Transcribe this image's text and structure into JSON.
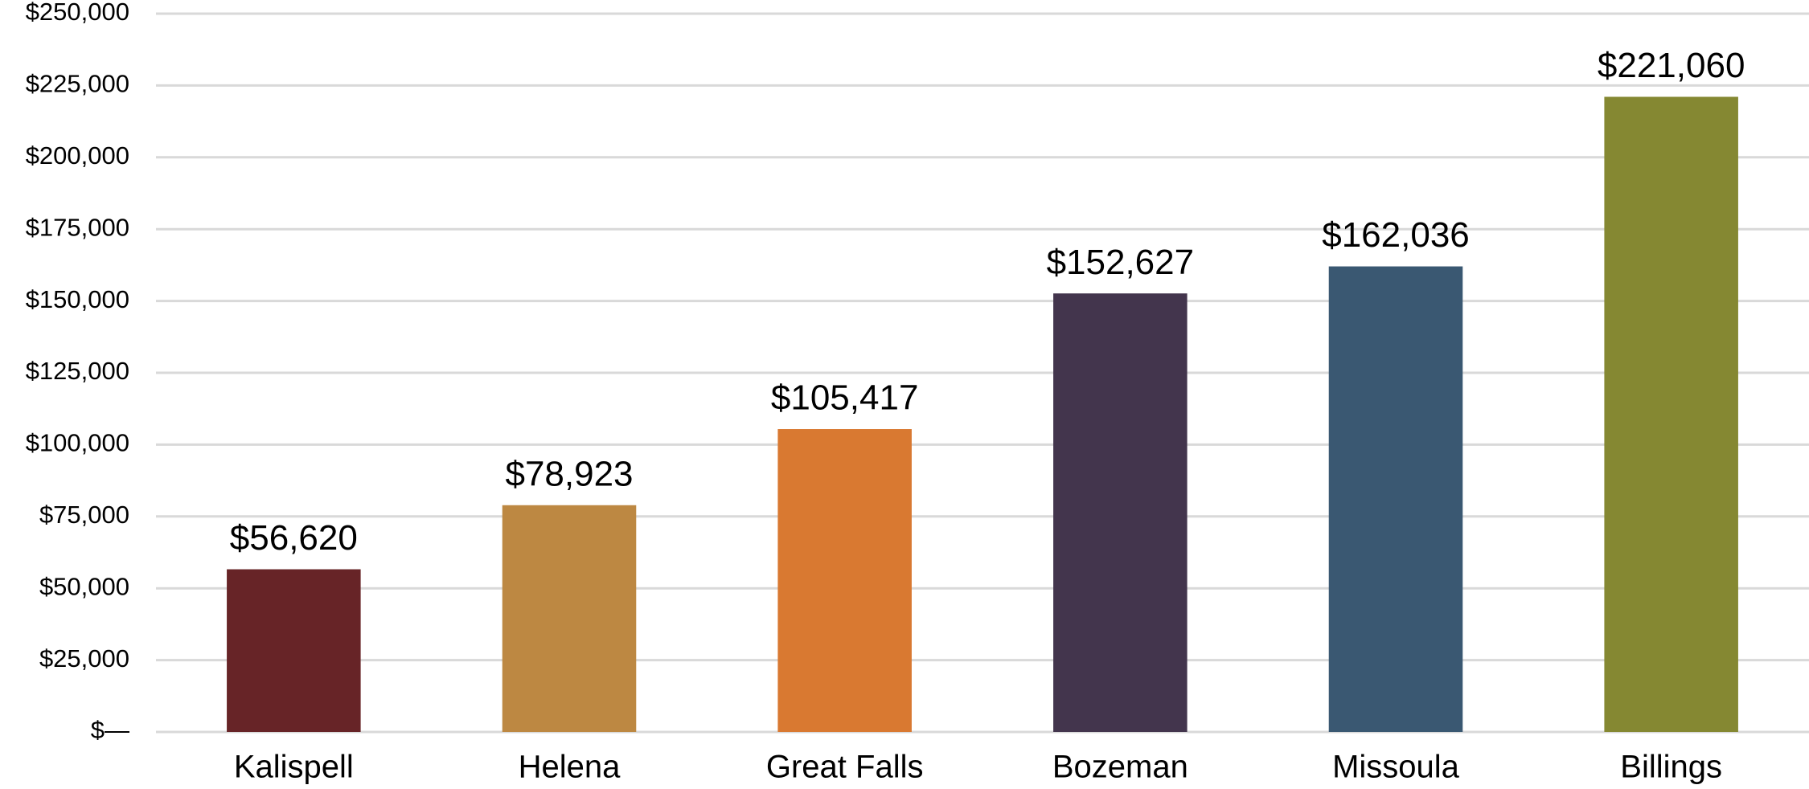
{
  "chart_data": {
    "type": "bar",
    "categories": [
      "Kalispell",
      "Helena",
      "Great Falls",
      "Bozeman",
      "Missoula",
      "Billings"
    ],
    "values": [
      56620,
      78923,
      105417,
      152627,
      162036,
      221060
    ],
    "value_labels": [
      "$56,620",
      "$78,923",
      "$105,417",
      "$152,627",
      "$162,036",
      "$221,060"
    ],
    "colors": [
      "#672427",
      "#bd8842",
      "#d97931",
      "#43354d",
      "#3a5872",
      "#858832"
    ],
    "ylim": [
      0,
      250000
    ],
    "yticks": [
      {
        "value": 0,
        "label": "$—"
      },
      {
        "value": 25000,
        "label": "$25,000"
      },
      {
        "value": 50000,
        "label": "$50,000"
      },
      {
        "value": 75000,
        "label": "$75,000"
      },
      {
        "value": 100000,
        "label": "$100,000"
      },
      {
        "value": 125000,
        "label": "$125,000"
      },
      {
        "value": 150000,
        "label": "$150,000"
      },
      {
        "value": 175000,
        "label": "$175,000"
      },
      {
        "value": 200000,
        "label": "$200,000"
      },
      {
        "value": 225000,
        "label": "$225,000"
      },
      {
        "value": 250000,
        "label": "$250,000"
      }
    ],
    "grid": true
  }
}
